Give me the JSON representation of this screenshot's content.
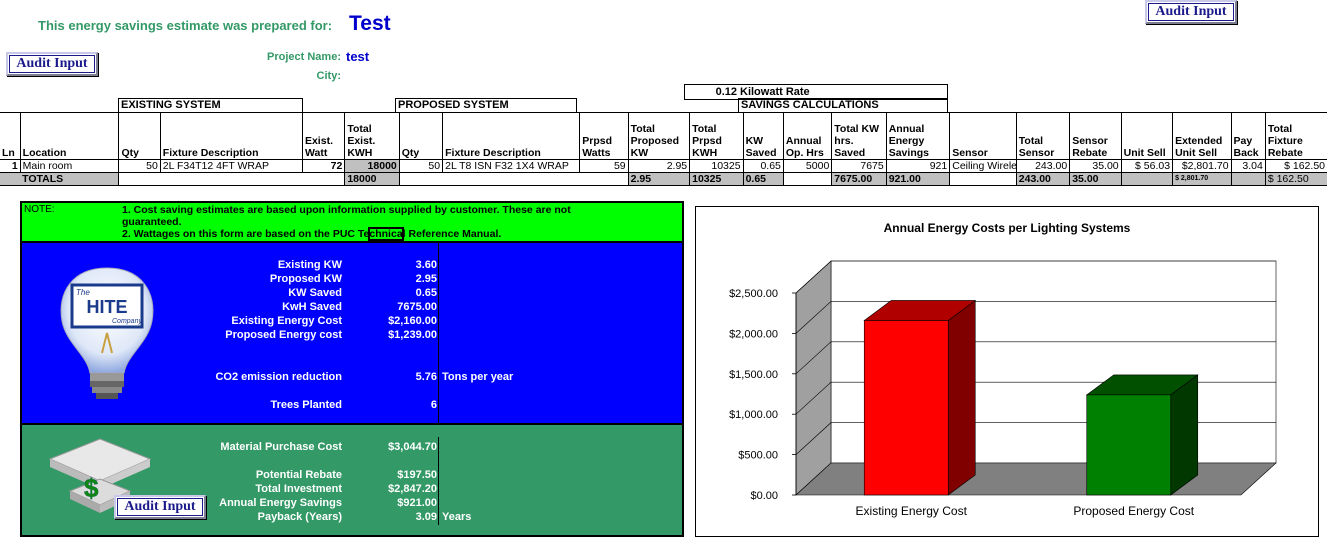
{
  "header": {
    "prepared_for_label": "This energy savings estimate was prepared for:",
    "prepared_for_value": "Test",
    "project_name_label": "Project Name:",
    "project_name_value": "test",
    "city_label": "City:",
    "city_value": "",
    "audit_button": "Audit Input"
  },
  "rate": {
    "value": "0.12",
    "label": "Kilowatt Rate"
  },
  "sections": {
    "existing": "EXISTING SYSTEM",
    "proposed": "PROPOSED SYSTEM",
    "savings": "SAVINGS CALCULATIONS"
  },
  "columns": {
    "ln": "Ln",
    "location": "Location",
    "qty": "Qty",
    "fixture_desc": "Fixture Description",
    "exist_watt": [
      "Exist.",
      "Watt"
    ],
    "total_exist_kwh": [
      "Total",
      "Exist.",
      "KWH"
    ],
    "qty2": "Qty",
    "fixture_desc2": "Fixture Description",
    "prpsd_watts": [
      "Prpsd",
      "Watts"
    ],
    "total_proposed_kw": [
      "Total",
      "Proposed",
      "KW"
    ],
    "total_prpsd_kwh": [
      "Total",
      "Prpsd",
      "KWH"
    ],
    "kw_saved": [
      "KW",
      "Saved"
    ],
    "annual_op_hrs": [
      "Annual",
      "Op. Hrs"
    ],
    "total_kw_hrs_saved": [
      "Total KW",
      "hrs.",
      "Saved"
    ],
    "annual_energy_savings": [
      "Annual",
      "Energy",
      "Savings"
    ],
    "sensor": "Sensor",
    "total_sensor": [
      "Total",
      "Sensor"
    ],
    "sensor_rebate": [
      "Sensor",
      "Rebate"
    ],
    "unit_sell": "Unit Sell",
    "extended_unit_sell": [
      "Extended",
      "Unit Sell"
    ],
    "pay_back": [
      "Pay",
      "Back"
    ],
    "total_fixture_rebate": [
      "Total",
      "Fixture",
      "Rebate"
    ]
  },
  "row": {
    "ln": "1",
    "location": "Main room",
    "qty": "50",
    "fixture": "2L F34T12 4FT WRAP",
    "exist_watt": "72",
    "total_exist_kwh": "18000",
    "qty2": "50",
    "fixture2": "2L T8 ISN F32 1X4 WRAP",
    "prpsd_watts": "59",
    "total_proposed_kw": "2.95",
    "total_prpsd_kwh": "10325",
    "kw_saved": "0.65",
    "annual_op_hrs": "5000",
    "total_kw_hrs_saved": "7675",
    "annual_energy_savings": "921",
    "sensor": "Ceiling Wirele",
    "total_sensor": "243.00",
    "sensor_rebate": "35.00",
    "unit_sell": "$ 56.03",
    "extended_unit_sell": "$2,801.70",
    "pay_back": "3.04",
    "total_fixture_rebate": "$ 162.50"
  },
  "totals": {
    "label": "TOTALS",
    "total_exist_kwh": "18000",
    "total_proposed_kw": "2.95",
    "total_prpsd_kwh": "10325",
    "kw_saved": "0.65",
    "total_kw_hrs_saved": "7675.00",
    "annual_energy_savings": "921.00",
    "total_sensor": "243.00",
    "sensor_rebate": "35.00",
    "extended_unit_sell": "$ 2,801.70",
    "total_fixture_rebate": "$ 162.50"
  },
  "note": {
    "label": "NOTE:",
    "line1a": "1.  Cost saving estimates are based upon information supplied by customer.  These are not",
    "line1b": "guaranteed.",
    "line2a": "2.  Wattages on this form are based on the PUC Te",
    "line2b": "chnica",
    "line2c": "l Reference Manual."
  },
  "summary": {
    "existing_kw_label": "Existing KW",
    "existing_kw": "3.60",
    "proposed_kw_label": "Proposed KW",
    "proposed_kw": "2.95",
    "kw_saved_label": "KW Saved",
    "kw_saved": "0.65",
    "kwh_saved_label": "KwH Saved",
    "kwh_saved": "7675.00",
    "existing_cost_label": "Existing Energy Cost",
    "existing_cost": "$2,160.00",
    "proposed_cost_label": "Proposed Energy cost",
    "proposed_cost": "$1,239.00",
    "co2_label": "CO2 emission reduction",
    "co2": "5.76",
    "co2_unit": "Tons per year",
    "trees_label": "Trees Planted",
    "trees": "6"
  },
  "finance": {
    "material_label": "Material Purchase Cost",
    "material": "$3,044.70",
    "rebate_label": "Potential Rebate",
    "rebate": "$197.50",
    "investment_label": "Total Investment",
    "investment": "$2,847.20",
    "savings_label": "Annual Energy Savings",
    "savings": "$921.00",
    "payback_label": "Payback (Years)",
    "payback": "3.09",
    "payback_unit": "Years"
  },
  "logo": {
    "the": "The",
    "name": "HITE",
    "company": "Company"
  },
  "colors": {
    "note_bg": "#00ff00",
    "summary_bg": "#0000ff",
    "finance_bg": "#339966",
    "bar1": "#ff0000",
    "bar2": "#008000"
  },
  "chart_data": {
    "type": "bar",
    "title": "Annual Energy Costs per Lighting Systems",
    "categories": [
      "Existing Energy Cost",
      "Proposed Energy Cost"
    ],
    "values": [
      2160,
      1239
    ],
    "ylim": [
      0,
      2500
    ],
    "yticks": [
      0,
      500,
      1000,
      1500,
      2000,
      2500
    ],
    "ytick_labels": [
      "$0.00",
      "$500.00",
      "$1,000.00",
      "$1,500.00",
      "$2,000.00",
      "$2,500.00"
    ],
    "grid": true,
    "style": "3d"
  }
}
